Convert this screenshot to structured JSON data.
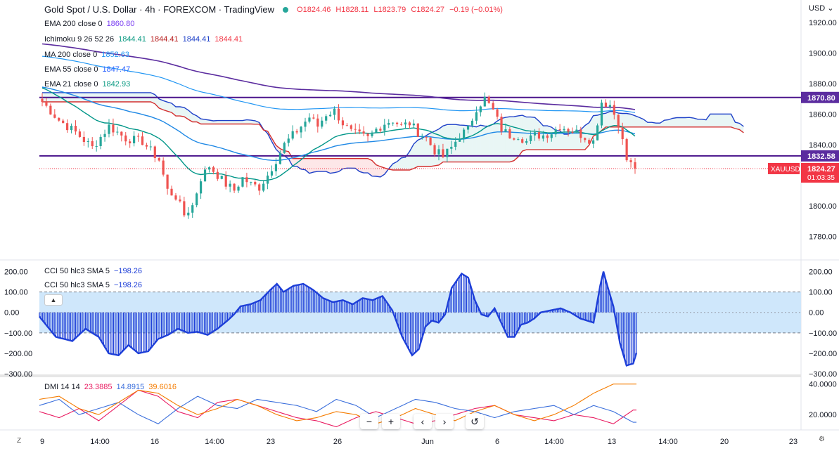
{
  "header": {
    "symbol": "Gold Spot / U.S. Dollar · 4h · FOREXCOM · TradingView",
    "open": "O1824.46",
    "high": "H1828.11",
    "low": "L1823.79",
    "close": "C1824.27",
    "change": "−0.19 (−0.01%)",
    "currency": "USD"
  },
  "legends": [
    {
      "name": "EMA 200 close 0",
      "values": [
        {
          "text": "1860.80",
          "color": "#7b3ff2"
        }
      ]
    },
    {
      "name": "Ichimoku 9 26 52 26",
      "values": [
        {
          "text": "1844.41",
          "color": "#089981"
        },
        {
          "text": "1844.41",
          "color": "#b71c1c"
        },
        {
          "text": "1844.41",
          "color": "#1e40c8"
        },
        {
          "text": "1844.41",
          "color": "#f23645"
        }
      ]
    },
    {
      "name": "MA 200 close 0",
      "values": [
        {
          "text": "1852.63",
          "color": "#2196f3"
        }
      ]
    },
    {
      "name": "EMA 55 close 0",
      "values": [
        {
          "text": "1847.47",
          "color": "#2962ff"
        }
      ]
    },
    {
      "name": "EMA 21 close 0",
      "values": [
        {
          "text": "1842.93",
          "color": "#089981"
        }
      ]
    }
  ],
  "cci_legends": [
    {
      "name": "CCI 50 hlc3 SMA 5",
      "value": "−198.26"
    },
    {
      "name": "CCI 50 hlc3 SMA 5",
      "value": "−198.26"
    }
  ],
  "dmi_legend": {
    "name": "DMI 14 14",
    "plus": "23.3885",
    "minus": "14.8915",
    "adx": "39.6016"
  },
  "price_labels": [
    {
      "text": "1870.80",
      "value": 1870.8,
      "bg": "#5b2c9f",
      "color": "#ffffff"
    },
    {
      "text": "1832.58",
      "value": 1832.58,
      "bg": "#5b2c9f",
      "color": "#ffffff"
    }
  ],
  "last_price": {
    "symbol": "XAUUSD",
    "price": "1824.27",
    "countdown": "01:03:35",
    "value": 1824.27,
    "bg": "#f23645"
  },
  "colors": {
    "up": "#26a69a",
    "down": "#ef5350",
    "ema200": "#5b2c9f",
    "ma200": "#2196f3",
    "ema55": "#1e88e5",
    "ema21": "#009688",
    "line_purple": "#4a148c",
    "cci": "#1e3fd8",
    "cci_band": "#cfe7fb",
    "dmi_plus": "#e91e63",
    "dmi_minus": "#3b6fdc",
    "dmi_adx": "#f57c00"
  },
  "chart_data": [
    {
      "type": "candlestick",
      "title": "Gold Spot / U.S. Dollar · 4h · FOREXCOM · TradingView",
      "ylim": [
        1770,
        1930
      ],
      "yticks": [
        "1920.00",
        "1900.00",
        "1880.00",
        "1860.00",
        "1840.00",
        "1820.00",
        "1800.00",
        "1780.00"
      ],
      "ytick_values": [
        1920,
        1900,
        1880,
        1860,
        1840,
        1820,
        1800,
        1780
      ],
      "xticks": [
        "9",
        "14:00",
        "16",
        "14:00",
        "23",
        "26",
        "Jun",
        "6",
        "14:00",
        "13",
        "14:00",
        "20",
        "23"
      ],
      "horizontal_lines": [
        1870.8,
        1832.58
      ],
      "anchors": [
        [
          0,
          1868
        ],
        [
          4,
          1856
        ],
        [
          8,
          1848
        ],
        [
          12,
          1838
        ],
        [
          16,
          1852
        ],
        [
          20,
          1844
        ],
        [
          24,
          1842
        ],
        [
          28,
          1830
        ],
        [
          30,
          1810
        ],
        [
          32,
          1806
        ],
        [
          34,
          1794
        ],
        [
          36,
          1800
        ],
        [
          38,
          1818
        ],
        [
          40,
          1826
        ],
        [
          42,
          1820
        ],
        [
          44,
          1814
        ],
        [
          46,
          1810
        ],
        [
          48,
          1818
        ],
        [
          50,
          1814
        ],
        [
          52,
          1812
        ],
        [
          54,
          1820
        ],
        [
          56,
          1830
        ],
        [
          58,
          1840
        ],
        [
          60,
          1846
        ],
        [
          62,
          1852
        ],
        [
          64,
          1858
        ],
        [
          66,
          1852
        ],
        [
          68,
          1860
        ],
        [
          70,
          1862
        ],
        [
          72,
          1854
        ],
        [
          74,
          1848
        ],
        [
          76,
          1846
        ],
        [
          78,
          1844
        ],
        [
          80,
          1850
        ],
        [
          82,
          1854
        ],
        [
          84,
          1856
        ],
        [
          86,
          1852
        ],
        [
          88,
          1854
        ],
        [
          90,
          1848
        ],
        [
          92,
          1844
        ],
        [
          94,
          1836
        ],
        [
          96,
          1832
        ],
        [
          98,
          1838
        ],
        [
          100,
          1846
        ],
        [
          102,
          1850
        ],
        [
          104,
          1864
        ],
        [
          106,
          1870
        ],
        [
          108,
          1862
        ],
        [
          110,
          1850
        ],
        [
          112,
          1846
        ],
        [
          114,
          1846
        ],
        [
          116,
          1842
        ],
        [
          118,
          1846
        ],
        [
          120,
          1846
        ],
        [
          122,
          1848
        ],
        [
          124,
          1852
        ],
        [
          126,
          1850
        ],
        [
          128,
          1848
        ],
        [
          130,
          1845
        ],
        [
          132,
          1842
        ],
        [
          134,
          1868
        ],
        [
          136,
          1866
        ],
        [
          138,
          1854
        ],
        [
          140,
          1830
        ],
        [
          142,
          1824
        ]
      ],
      "n_bars": 143
    },
    {
      "type": "area",
      "title": "CCI 50 hlc3 SMA 5",
      "ylim": [
        -300,
        250
      ],
      "yticks": [
        "200.00",
        "100.00",
        "0.00",
        "−100.00",
        "−200.00",
        "−300.00"
      ],
      "ytick_values": [
        200,
        100,
        0,
        -100,
        -200,
        -300
      ],
      "band": [
        -100,
        100
      ],
      "points": [
        [
          0,
          -20
        ],
        [
          5,
          -120
        ],
        [
          10,
          -140
        ],
        [
          14,
          -80
        ],
        [
          18,
          -120
        ],
        [
          21,
          -200
        ],
        [
          24,
          -210
        ],
        [
          27,
          -160
        ],
        [
          30,
          -200
        ],
        [
          33,
          -190
        ],
        [
          36,
          -130
        ],
        [
          39,
          -110
        ],
        [
          42,
          -80
        ],
        [
          45,
          -100
        ],
        [
          48,
          -95
        ],
        [
          51,
          -110
        ],
        [
          54,
          -80
        ],
        [
          57,
          -40
        ],
        [
          59,
          -10
        ],
        [
          61,
          30
        ],
        [
          64,
          40
        ],
        [
          67,
          60
        ],
        [
          70,
          110
        ],
        [
          72,
          140
        ],
        [
          74,
          100
        ],
        [
          77,
          130
        ],
        [
          80,
          140
        ],
        [
          83,
          110
        ],
        [
          86,
          70
        ],
        [
          89,
          50
        ],
        [
          92,
          60
        ],
        [
          95,
          40
        ],
        [
          98,
          70
        ],
        [
          101,
          60
        ],
        [
          104,
          80
        ],
        [
          107,
          10
        ],
        [
          110,
          -120
        ],
        [
          113,
          -210
        ],
        [
          115,
          -180
        ],
        [
          117,
          -70
        ],
        [
          119,
          -40
        ],
        [
          121,
          -50
        ],
        [
          123,
          -10
        ],
        [
          125,
          120
        ],
        [
          128,
          190
        ],
        [
          130,
          170
        ],
        [
          132,
          60
        ],
        [
          134,
          -10
        ],
        [
          136,
          -20
        ],
        [
          138,
          20
        ],
        [
          140,
          -50
        ],
        [
          142,
          -120
        ],
        [
          144,
          -120
        ],
        [
          146,
          -60
        ],
        [
          148,
          -50
        ],
        [
          150,
          -30
        ],
        [
          152,
          0
        ],
        [
          155,
          10
        ],
        [
          158,
          20
        ],
        [
          161,
          0
        ],
        [
          164,
          -30
        ],
        [
          166,
          -40
        ],
        [
          168,
          -50
        ],
        [
          170,
          130
        ],
        [
          171,
          200
        ],
        [
          172,
          140
        ],
        [
          174,
          30
        ],
        [
          176,
          -150
        ],
        [
          178,
          -260
        ],
        [
          180,
          -250
        ],
        [
          181,
          -198
        ]
      ],
      "x_max": 181
    },
    {
      "type": "line",
      "title": "DMI 14 14",
      "ylim": [
        10,
        44
      ],
      "yticks": [
        "40.0000",
        "20.0000"
      ],
      "ytick_values": [
        40,
        20
      ],
      "series": [
        {
          "name": "+DI",
          "color": "#e91e63",
          "points": [
            [
              0,
              22
            ],
            [
              6,
              18
            ],
            [
              12,
              24
            ],
            [
              18,
              16
            ],
            [
              24,
              26
            ],
            [
              30,
              36
            ],
            [
              36,
              32
            ],
            [
              42,
              22
            ],
            [
              48,
              18
            ],
            [
              54,
              28
            ],
            [
              60,
              30
            ],
            [
              66,
              26
            ],
            [
              72,
              22
            ],
            [
              78,
              18
            ],
            [
              84,
              16
            ],
            [
              90,
              12
            ],
            [
              96,
              18
            ],
            [
              102,
              22
            ],
            [
              108,
              18
            ],
            [
              114,
              14
            ],
            [
              120,
              16
            ],
            [
              126,
              20
            ],
            [
              132,
              24
            ],
            [
              138,
              26
            ],
            [
              144,
              20
            ],
            [
              150,
              18
            ],
            [
              156,
              16
            ],
            [
              162,
              20
            ],
            [
              168,
              18
            ],
            [
              174,
              14
            ],
            [
              180,
              23
            ]
          ]
        },
        {
          "name": "−DI",
          "color": "#3b6fdc",
          "points": [
            [
              0,
              26
            ],
            [
              6,
              30
            ],
            [
              12,
              20
            ],
            [
              18,
              24
            ],
            [
              24,
              28
            ],
            [
              30,
              20
            ],
            [
              36,
              14
            ],
            [
              42,
              24
            ],
            [
              48,
              32
            ],
            [
              54,
              26
            ],
            [
              60,
              24
            ],
            [
              66,
              30
            ],
            [
              72,
              28
            ],
            [
              78,
              26
            ],
            [
              84,
              22
            ],
            [
              90,
              30
            ],
            [
              96,
              26
            ],
            [
              102,
              18
            ],
            [
              108,
              24
            ],
            [
              114,
              30
            ],
            [
              120,
              28
            ],
            [
              126,
              24
            ],
            [
              132,
              22
            ],
            [
              138,
              18
            ],
            [
              144,
              22
            ],
            [
              150,
              24
            ],
            [
              156,
              26
            ],
            [
              162,
              20
            ],
            [
              168,
              26
            ],
            [
              174,
              22
            ],
            [
              180,
              15
            ]
          ]
        },
        {
          "name": "ADX",
          "color": "#f57c00",
          "points": [
            [
              0,
              30
            ],
            [
              6,
              32
            ],
            [
              12,
              24
            ],
            [
              18,
              20
            ],
            [
              24,
              28
            ],
            [
              30,
              36
            ],
            [
              36,
              34
            ],
            [
              42,
              26
            ],
            [
              48,
              20
            ],
            [
              54,
              24
            ],
            [
              60,
              30
            ],
            [
              66,
              26
            ],
            [
              72,
              20
            ],
            [
              78,
              16
            ],
            [
              84,
              18
            ],
            [
              90,
              22
            ],
            [
              96,
              20
            ],
            [
              102,
              14
            ],
            [
              108,
              18
            ],
            [
              114,
              24
            ],
            [
              120,
              20
            ],
            [
              126,
              16
            ],
            [
              132,
              22
            ],
            [
              138,
              26
            ],
            [
              144,
              20
            ],
            [
              150,
              16
            ],
            [
              156,
              20
            ],
            [
              162,
              26
            ],
            [
              168,
              34
            ],
            [
              174,
              40
            ],
            [
              180,
              40
            ]
          ]
        }
      ],
      "x_max": 181
    }
  ],
  "toolbar": {
    "zoom_out": "−",
    "zoom_in": "+",
    "prev": "‹",
    "next": "›",
    "reset": "↺"
  }
}
